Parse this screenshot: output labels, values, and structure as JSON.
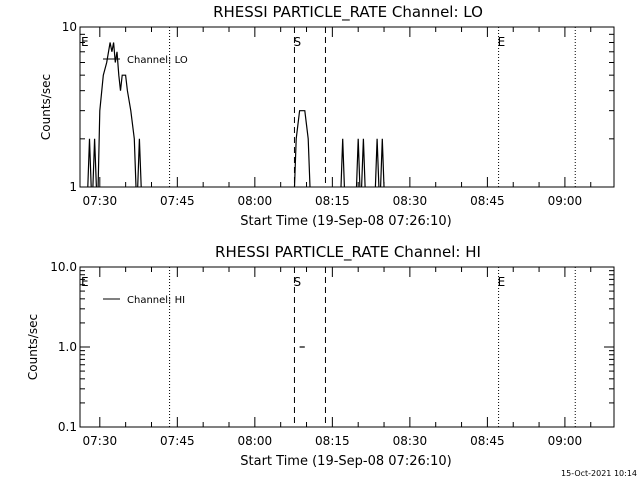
{
  "footer": {
    "timestamp": "15-Oct-2021 10:14"
  },
  "chart_data": [
    {
      "type": "line",
      "title": "RHESSI PARTICLE_RATE Channel: LO",
      "xlabel": "Start Time (19-Sep-08 07:26:10)",
      "ylabel": "Counts/sec",
      "y_scale": "log",
      "ylim": [
        1,
        10
      ],
      "xlim": [
        "07:26:10",
        "09:09:30"
      ],
      "x_ticks": [
        "07:30",
        "07:45",
        "08:00",
        "08:15",
        "08:30",
        "08:45",
        "09:00"
      ],
      "y_ticks": [
        "1",
        "10"
      ],
      "legend": {
        "position": "top-left",
        "entries": [
          "Channel: LO"
        ]
      },
      "markers": [
        {
          "time": "07:26:10",
          "label": "E",
          "style": "dotted"
        },
        {
          "time": "07:43:30",
          "label": "",
          "style": "dotted"
        },
        {
          "time": "08:07:40",
          "label": "S",
          "style": "dashed"
        },
        {
          "time": "08:13:40",
          "label": "",
          "style": "dashed"
        },
        {
          "time": "08:47:10",
          "label": "E",
          "style": "dotted"
        },
        {
          "time": "09:02:00",
          "label": "",
          "style": "dotted"
        }
      ],
      "series": [
        {
          "name": "Channel: LO",
          "segments": [
            [
              [
                "07:27:40",
                1
              ],
              [
                "07:28:00",
                2
              ],
              [
                "07:28:20",
                1
              ]
            ],
            [
              [
                "07:28:40",
                1
              ],
              [
                "07:29:00",
                2
              ],
              [
                "07:29:20",
                1
              ]
            ],
            [
              [
                "07:29:40",
                1
              ],
              [
                "07:30:00",
                3
              ],
              [
                "07:30:40",
                5
              ],
              [
                "07:31:20",
                6
              ],
              [
                "07:32:00",
                8
              ],
              [
                "07:32:20",
                7
              ],
              [
                "07:32:40",
                8
              ],
              [
                "07:33:00",
                6
              ],
              [
                "07:33:20",
                7
              ],
              [
                "07:33:40",
                5
              ],
              [
                "07:34:00",
                4
              ],
              [
                "07:34:20",
                5
              ],
              [
                "07:35:00",
                5
              ],
              [
                "07:35:20",
                4
              ],
              [
                "07:36:00",
                3
              ],
              [
                "07:36:40",
                2
              ],
              [
                "07:37:00",
                1
              ]
            ],
            [
              [
                "07:37:20",
                1
              ],
              [
                "07:37:40",
                2
              ],
              [
                "07:38:00",
                1
              ]
            ],
            [
              [
                "08:07:40",
                1
              ],
              [
                "08:08:00",
                2
              ],
              [
                "08:08:40",
                3
              ],
              [
                "08:09:40",
                3
              ],
              [
                "08:10:20",
                2
              ],
              [
                "08:10:40",
                1
              ]
            ],
            [
              [
                "08:16:40",
                1
              ],
              [
                "08:17:00",
                2
              ],
              [
                "08:17:20",
                1
              ]
            ],
            [
              [
                "08:19:40",
                1
              ],
              [
                "08:20:00",
                2
              ],
              [
                "08:20:20",
                1
              ]
            ],
            [
              [
                "08:20:40",
                1
              ],
              [
                "08:21:00",
                2
              ],
              [
                "08:21:20",
                1
              ]
            ],
            [
              [
                "08:23:20",
                1
              ],
              [
                "08:23:40",
                2
              ],
              [
                "08:24:00",
                1
              ]
            ],
            [
              [
                "08:24:20",
                1
              ],
              [
                "08:24:40",
                2
              ],
              [
                "08:25:00",
                1
              ]
            ]
          ]
        }
      ]
    },
    {
      "type": "line",
      "title": "RHESSI PARTICLE_RATE Channel: HI",
      "xlabel": "Start Time (19-Sep-08 07:26:10)",
      "ylabel": "Counts/sec",
      "y_scale": "log",
      "ylim": [
        0.1,
        10
      ],
      "xlim": [
        "07:26:10",
        "09:09:30"
      ],
      "x_ticks": [
        "07:30",
        "07:45",
        "08:00",
        "08:15",
        "08:30",
        "08:45",
        "09:00"
      ],
      "y_ticks": [
        "0.1",
        "1.0",
        "10.0"
      ],
      "legend": {
        "position": "top-left",
        "entries": [
          "Channel: HI"
        ]
      },
      "markers": [
        {
          "time": "07:26:10",
          "label": "E",
          "style": "dotted"
        },
        {
          "time": "07:43:30",
          "label": "",
          "style": "dotted"
        },
        {
          "time": "08:07:40",
          "label": "S",
          "style": "dashed"
        },
        {
          "time": "08:13:40",
          "label": "",
          "style": "dashed"
        },
        {
          "time": "08:47:10",
          "label": "E",
          "style": "dotted"
        },
        {
          "time": "09:02:00",
          "label": "",
          "style": "dotted"
        }
      ],
      "series": [
        {
          "name": "Channel: HI",
          "segments": [
            [
              [
                "08:08:40",
                1
              ],
              [
                "08:09:40",
                1
              ]
            ]
          ]
        }
      ]
    }
  ]
}
